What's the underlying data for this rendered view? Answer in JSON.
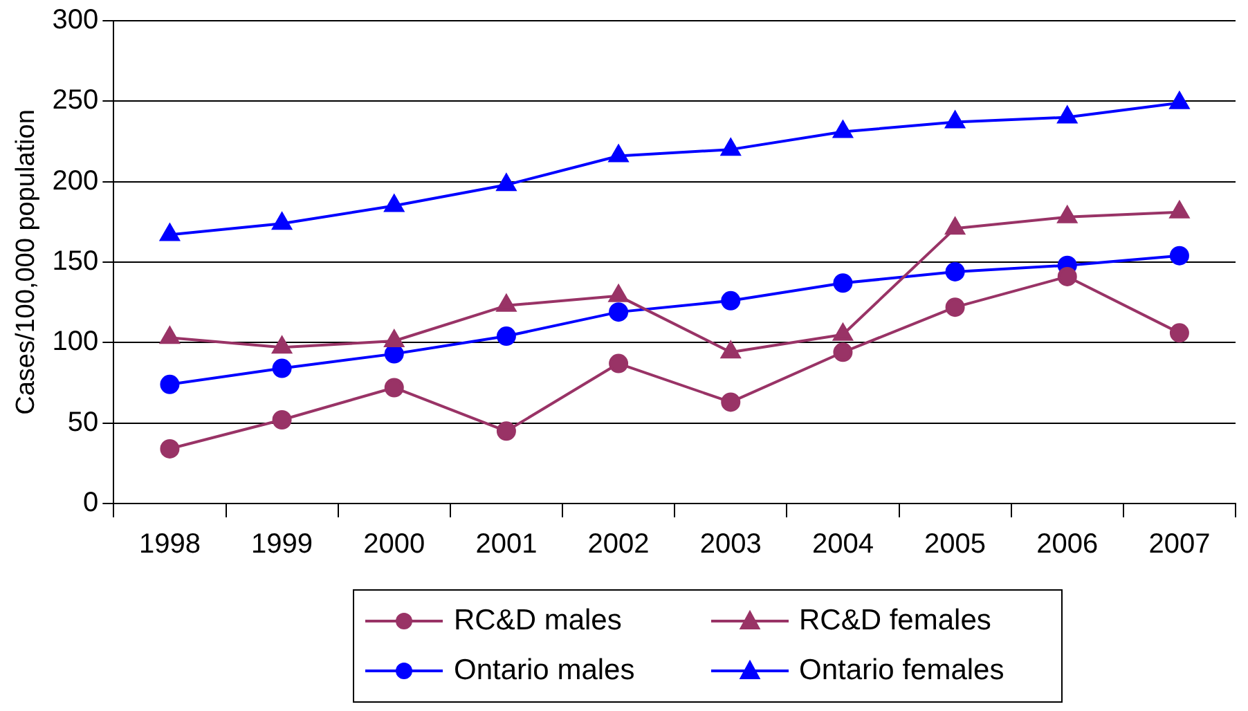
{
  "chart_data": {
    "type": "line",
    "ylabel": "Cases/100,000 population",
    "categories": [
      "1998",
      "1999",
      "2000",
      "2001",
      "2002",
      "2003",
      "2004",
      "2005",
      "2006",
      "2007"
    ],
    "series": [
      {
        "name": "RC&D males",
        "color": "#993366",
        "marker": "circle",
        "values": [
          34,
          52,
          72,
          45,
          87,
          63,
          94,
          122,
          141,
          106
        ]
      },
      {
        "name": "RC&D females",
        "color": "#993366",
        "marker": "triangle",
        "values": [
          103,
          97,
          101,
          123,
          129,
          94,
          105,
          171,
          178,
          181
        ]
      },
      {
        "name": "Ontario males",
        "color": "#0000ff",
        "marker": "circle",
        "values": [
          74,
          84,
          93,
          104,
          119,
          126,
          137,
          144,
          148,
          154
        ]
      },
      {
        "name": "Ontario females",
        "color": "#0000ff",
        "marker": "triangle",
        "values": [
          167,
          174,
          185,
          198,
          216,
          220,
          231,
          237,
          240,
          249
        ]
      }
    ],
    "ylim": [
      0,
      300
    ],
    "yticks": [
      0,
      50,
      100,
      150,
      200,
      250,
      300
    ],
    "grid": "y",
    "legend": "bottom",
    "line_style": "solid"
  }
}
